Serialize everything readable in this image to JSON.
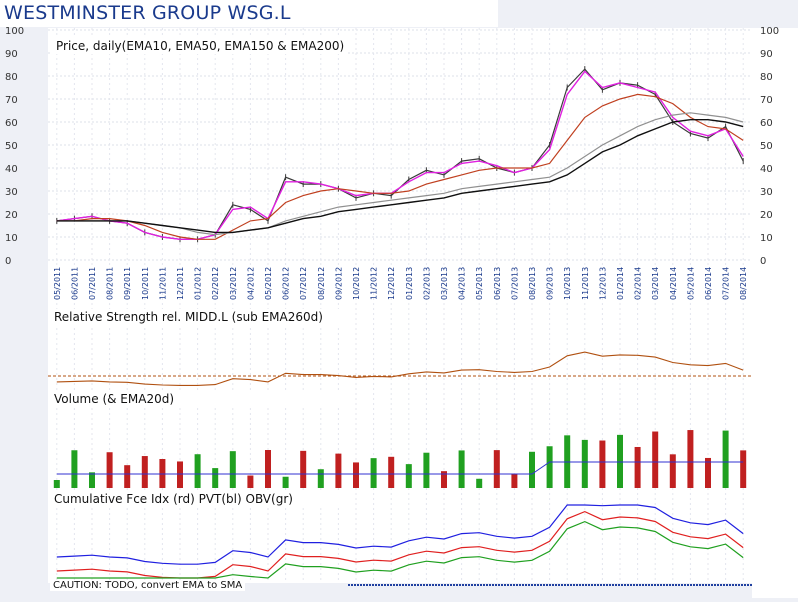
{
  "header": {
    "title": "WESTMINSTER GROUP WSG.L"
  },
  "panels": {
    "price_label": "Price, daily(EMA10, EMA50, EMA150 & EMA200)",
    "rs_label": "Relative Strength rel. MIDD.L (sub EMA260d)",
    "volume_label": "Volume (& EMA20d)",
    "flow_label": "Cumulative Fce Idx (rd) PVT(bl) OBV(gr)",
    "caution": "CAUTION: TODO, convert EMA to SMA"
  },
  "chart_data": {
    "type": "line",
    "title": "WESTMINSTER GROUP WSG.L",
    "ylim": [
      0,
      100
    ],
    "y_ticks": [
      "0",
      "10",
      "20",
      "30",
      "40",
      "50",
      "60",
      "70",
      "80",
      "90",
      "100"
    ],
    "x_ticks": [
      "05/2011",
      "06/2011",
      "07/2011",
      "08/2011",
      "09/2011",
      "10/2011",
      "11/2011",
      "12/2011",
      "01/2012",
      "02/2012",
      "03/2012",
      "04/2012",
      "05/2012",
      "06/2012",
      "07/2012",
      "08/2012",
      "09/2012",
      "10/2012",
      "11/2012",
      "12/2012",
      "01/2013",
      "02/2013",
      "03/2013",
      "04/2013",
      "05/2013",
      "06/2013",
      "07/2013",
      "08/2013",
      "09/2013",
      "10/2013",
      "11/2013",
      "12/2013",
      "01/2014",
      "02/2014",
      "03/2014",
      "04/2014",
      "05/2014",
      "06/2014",
      "07/2014",
      "08/2014"
    ],
    "colors": {
      "price": "#3a3a3a",
      "ema10": "#e020e0",
      "ema50": "#c04020",
      "ema150": "#909090",
      "ema200": "#101010",
      "hi_lo": "#30a030",
      "rs": "#b05010",
      "volume_up": "#20a020",
      "volume_down": "#c02020",
      "volume_ema": "#3030d0",
      "pvt": "#2020e0",
      "obv": "#20a020",
      "force": "#e02020"
    },
    "series": [
      {
        "name": "Price",
        "values": [
          17,
          18,
          19,
          17,
          16,
          12,
          10,
          9,
          9,
          11,
          24,
          22,
          17,
          36,
          33,
          33,
          31,
          27,
          29,
          28,
          35,
          39,
          37,
          43,
          44,
          40,
          38,
          40,
          50,
          75,
          83,
          74,
          77,
          76,
          72,
          60,
          55,
          53,
          58,
          43
        ]
      },
      {
        "name": "EMA10",
        "values": [
          17,
          18,
          19,
          17,
          16,
          12,
          10,
          9,
          9,
          11,
          22,
          23,
          18,
          34,
          34,
          33,
          31,
          28,
          29,
          29,
          34,
          38,
          38,
          42,
          43,
          41,
          38,
          40,
          48,
          72,
          82,
          75,
          77,
          75,
          73,
          62,
          56,
          54,
          57,
          45
        ]
      },
      {
        "name": "EMA50",
        "values": [
          17,
          17,
          18,
          18,
          17,
          15,
          12,
          10,
          9,
          9,
          13,
          17,
          18,
          25,
          28,
          30,
          31,
          30,
          29,
          29,
          30,
          33,
          35,
          37,
          39,
          40,
          40,
          40,
          42,
          52,
          62,
          67,
          70,
          72,
          71,
          68,
          62,
          58,
          57,
          52
        ]
      },
      {
        "name": "EMA150",
        "values": [
          17,
          17,
          17,
          17,
          17,
          16,
          15,
          14,
          12,
          11,
          12,
          13,
          14,
          17,
          19,
          21,
          23,
          24,
          25,
          26,
          27,
          28,
          29,
          31,
          32,
          33,
          34,
          35,
          36,
          40,
          45,
          50,
          54,
          58,
          61,
          63,
          64,
          63,
          62,
          60
        ]
      },
      {
        "name": "EMA200",
        "values": [
          17,
          17,
          17,
          17,
          17,
          16,
          15,
          14,
          13,
          12,
          12,
          13,
          14,
          16,
          18,
          19,
          21,
          22,
          23,
          24,
          25,
          26,
          27,
          29,
          30,
          31,
          32,
          33,
          34,
          37,
          42,
          47,
          50,
          54,
          57,
          60,
          61,
          61,
          60,
          58
        ]
      }
    ]
  }
}
